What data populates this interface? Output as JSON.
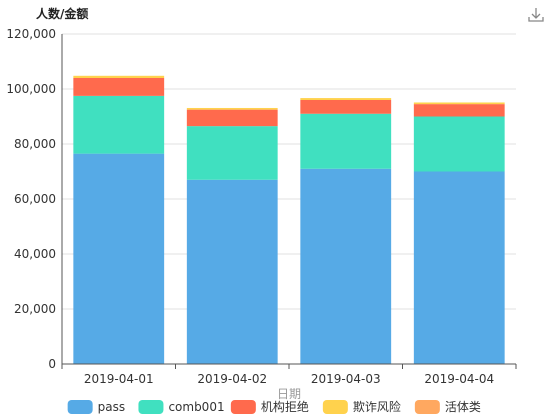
{
  "toolbox": {
    "download_icon": "download-icon"
  },
  "chart_data": {
    "type": "bar",
    "stacked": true,
    "title": "",
    "ylabel": "人数/金额",
    "xlabel": "日期",
    "ylim": [
      0,
      120000
    ],
    "yticks": [
      "0",
      "20,000",
      "40,000",
      "60,000",
      "80,000",
      "100,000",
      "120,000"
    ],
    "categories": [
      "2019-04-01",
      "2019-04-02",
      "2019-04-03",
      "2019-04-04"
    ],
    "grid": true,
    "legend_position": "bottom",
    "series": [
      {
        "name": "pass",
        "color": "#56aae6",
        "values": [
          76500,
          67000,
          71000,
          70000
        ]
      },
      {
        "name": "comb001",
        "color": "#40e0c0",
        "values": [
          21000,
          19500,
          20000,
          20000
        ]
      },
      {
        "name": "机构拒绝",
        "color": "#ff6a4d",
        "values": [
          6500,
          6000,
          5000,
          4500
        ]
      },
      {
        "name": "欺诈风险",
        "color": "#ffd24d",
        "values": [
          800,
          600,
          700,
          600
        ]
      },
      {
        "name": "活体类",
        "color": "#ffa860",
        "values": [
          0,
          0,
          0,
          0
        ]
      }
    ]
  }
}
